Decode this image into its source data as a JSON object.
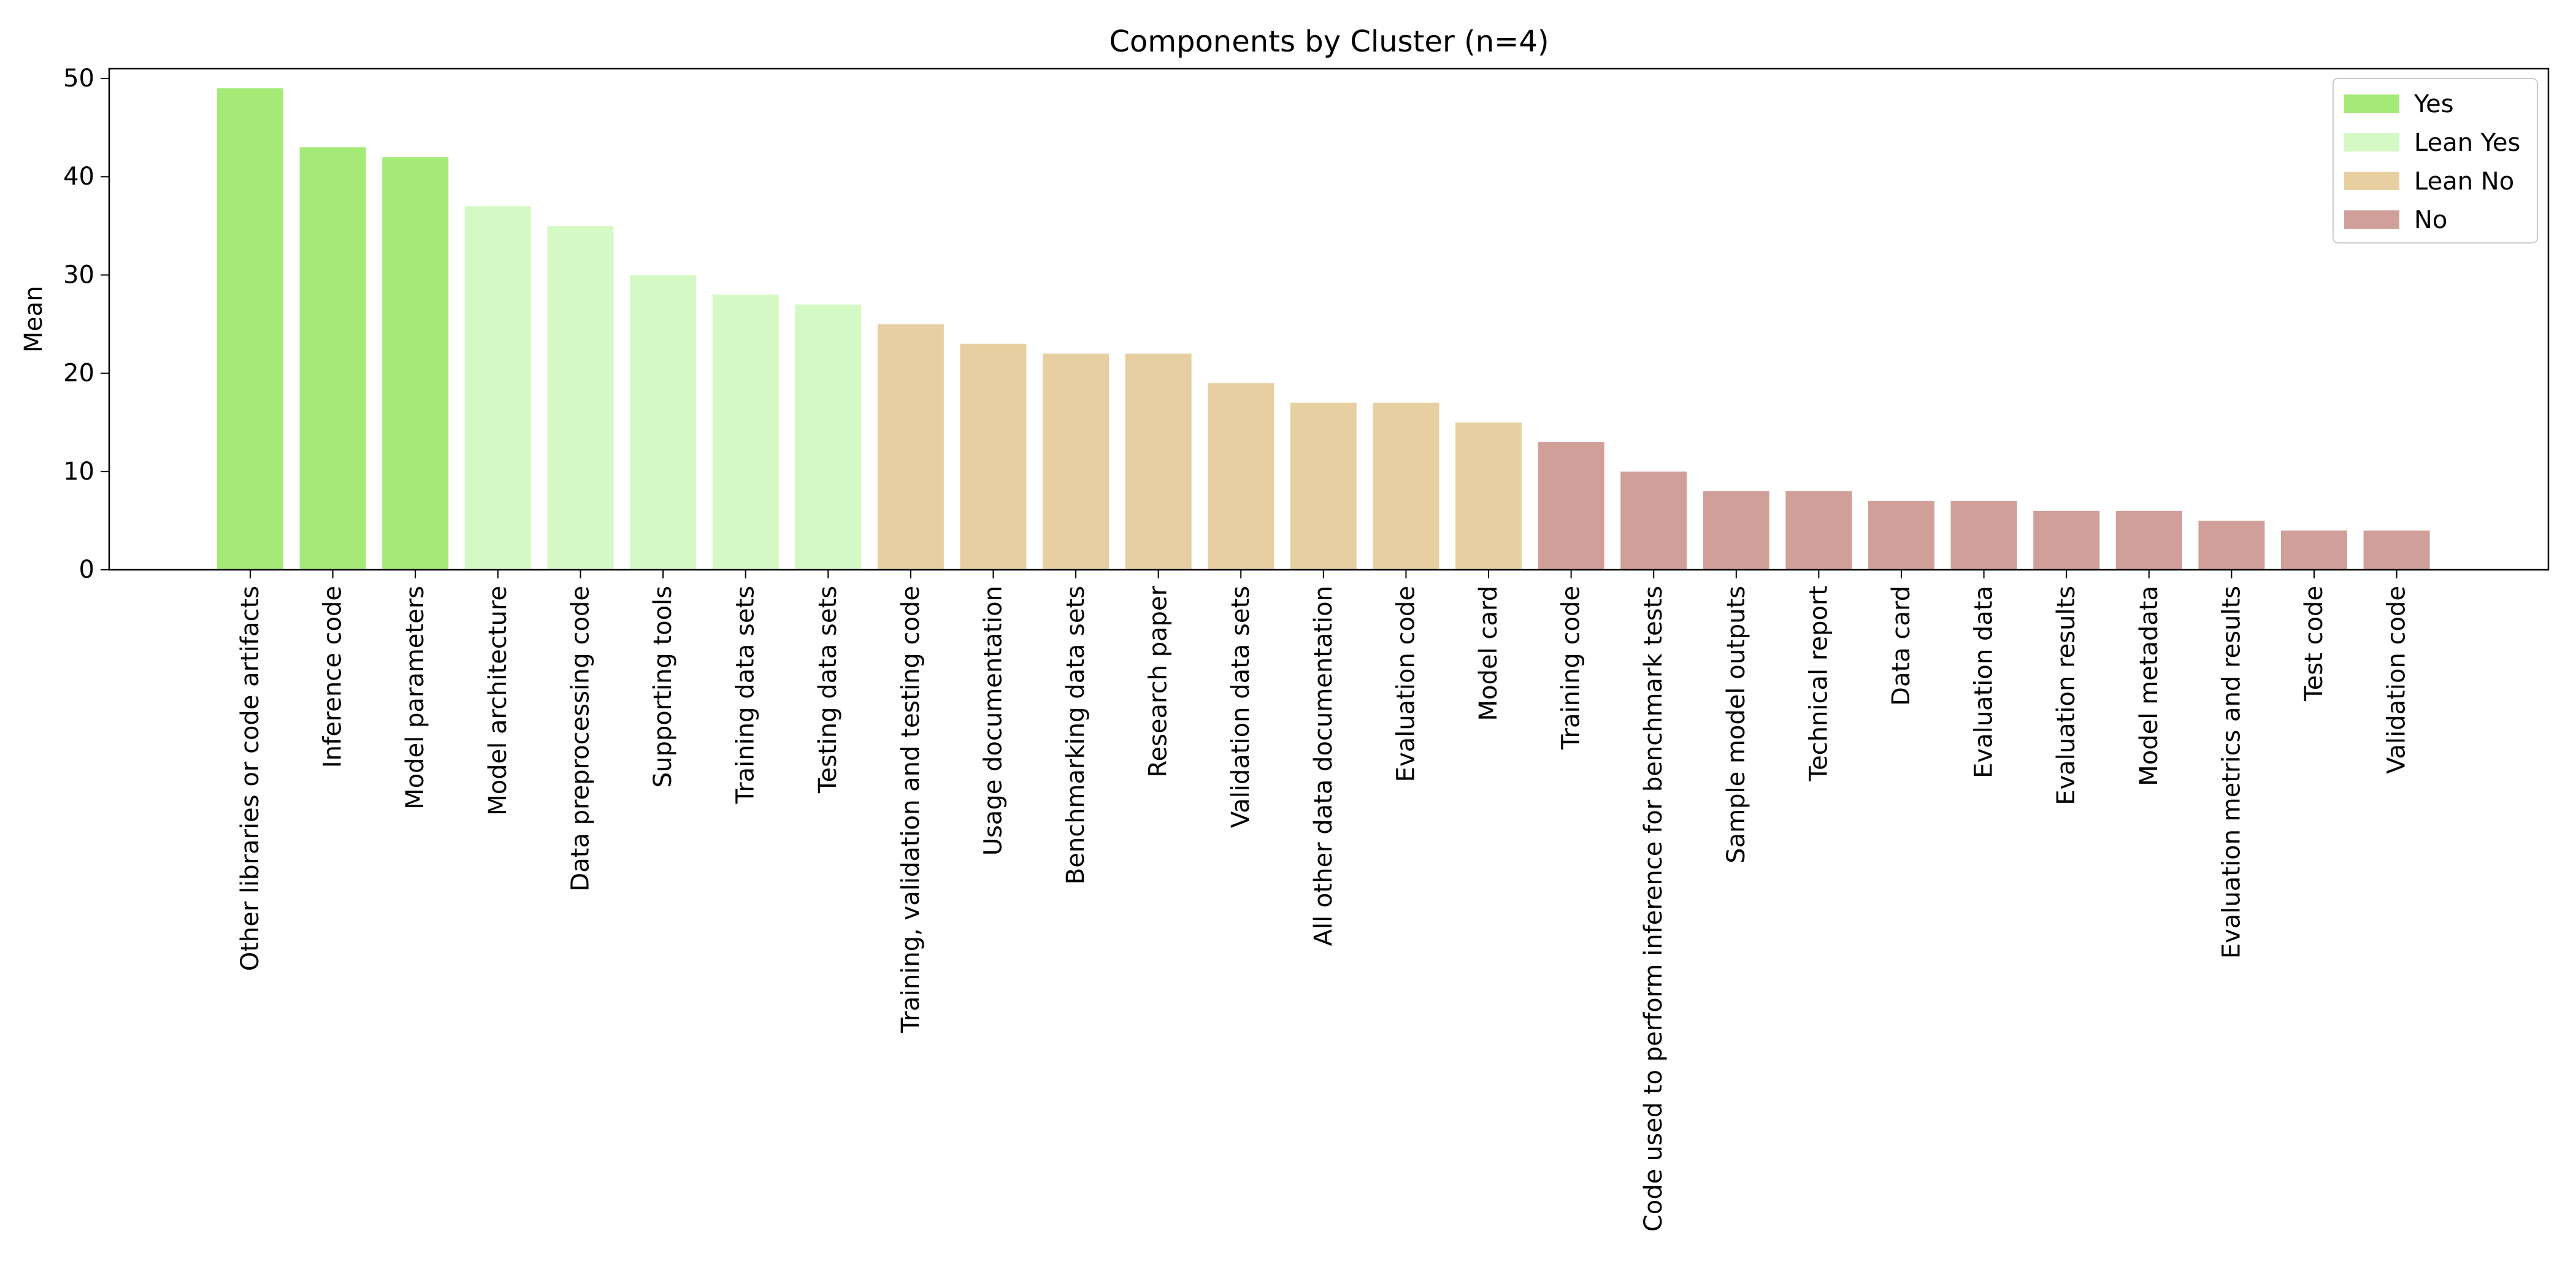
{
  "chart_data": {
    "type": "bar",
    "title": "Components by Cluster (n=4)",
    "xlabel": "",
    "ylabel": "Mean",
    "ylim": [
      0,
      51
    ],
    "yticks": [
      0,
      10,
      20,
      30,
      40,
      50
    ],
    "categories": [
      "Other libraries or code artifacts",
      "Inference code",
      "Model parameters",
      "Model architecture",
      "Data preprocessing code",
      "Supporting tools",
      "Training data sets",
      "Testing data sets",
      "Training, validation and testing code",
      "Usage documentation",
      "Benchmarking data sets",
      "Research paper",
      "Validation data sets",
      "All other data documentation",
      "Evaluation code",
      "Model card",
      "Training code",
      "Code used to perform inference for benchmark tests",
      "Sample model outputs",
      "Technical report",
      "Data card",
      "Evaluation data",
      "Evaluation results",
      "Model metadata",
      "Evaluation metrics and results",
      "Test code",
      "Validation code"
    ],
    "values": [
      49,
      43,
      42,
      37,
      35,
      30,
      28,
      27,
      25,
      23,
      22,
      22,
      19,
      17,
      17,
      15,
      13,
      10,
      8,
      8,
      7,
      7,
      6,
      6,
      5,
      4,
      4
    ],
    "groups": [
      "Yes",
      "Yes",
      "Yes",
      "Lean Yes",
      "Lean Yes",
      "Lean Yes",
      "Lean Yes",
      "Lean Yes",
      "Lean No",
      "Lean No",
      "Lean No",
      "Lean No",
      "Lean No",
      "Lean No",
      "Lean No",
      "Lean No",
      "No",
      "No",
      "No",
      "No",
      "No",
      "No",
      "No",
      "No",
      "No",
      "No",
      "No"
    ],
    "legend": {
      "position": "top-right",
      "entries": [
        {
          "name": "Yes",
          "color": "#a5ea77"
        },
        {
          "name": "Lean Yes",
          "color": "#d5f9c5"
        },
        {
          "name": "Lean No",
          "color": "#e7cfa1"
        },
        {
          "name": "No",
          "color": "#d19f99"
        }
      ]
    },
    "grid": false
  }
}
